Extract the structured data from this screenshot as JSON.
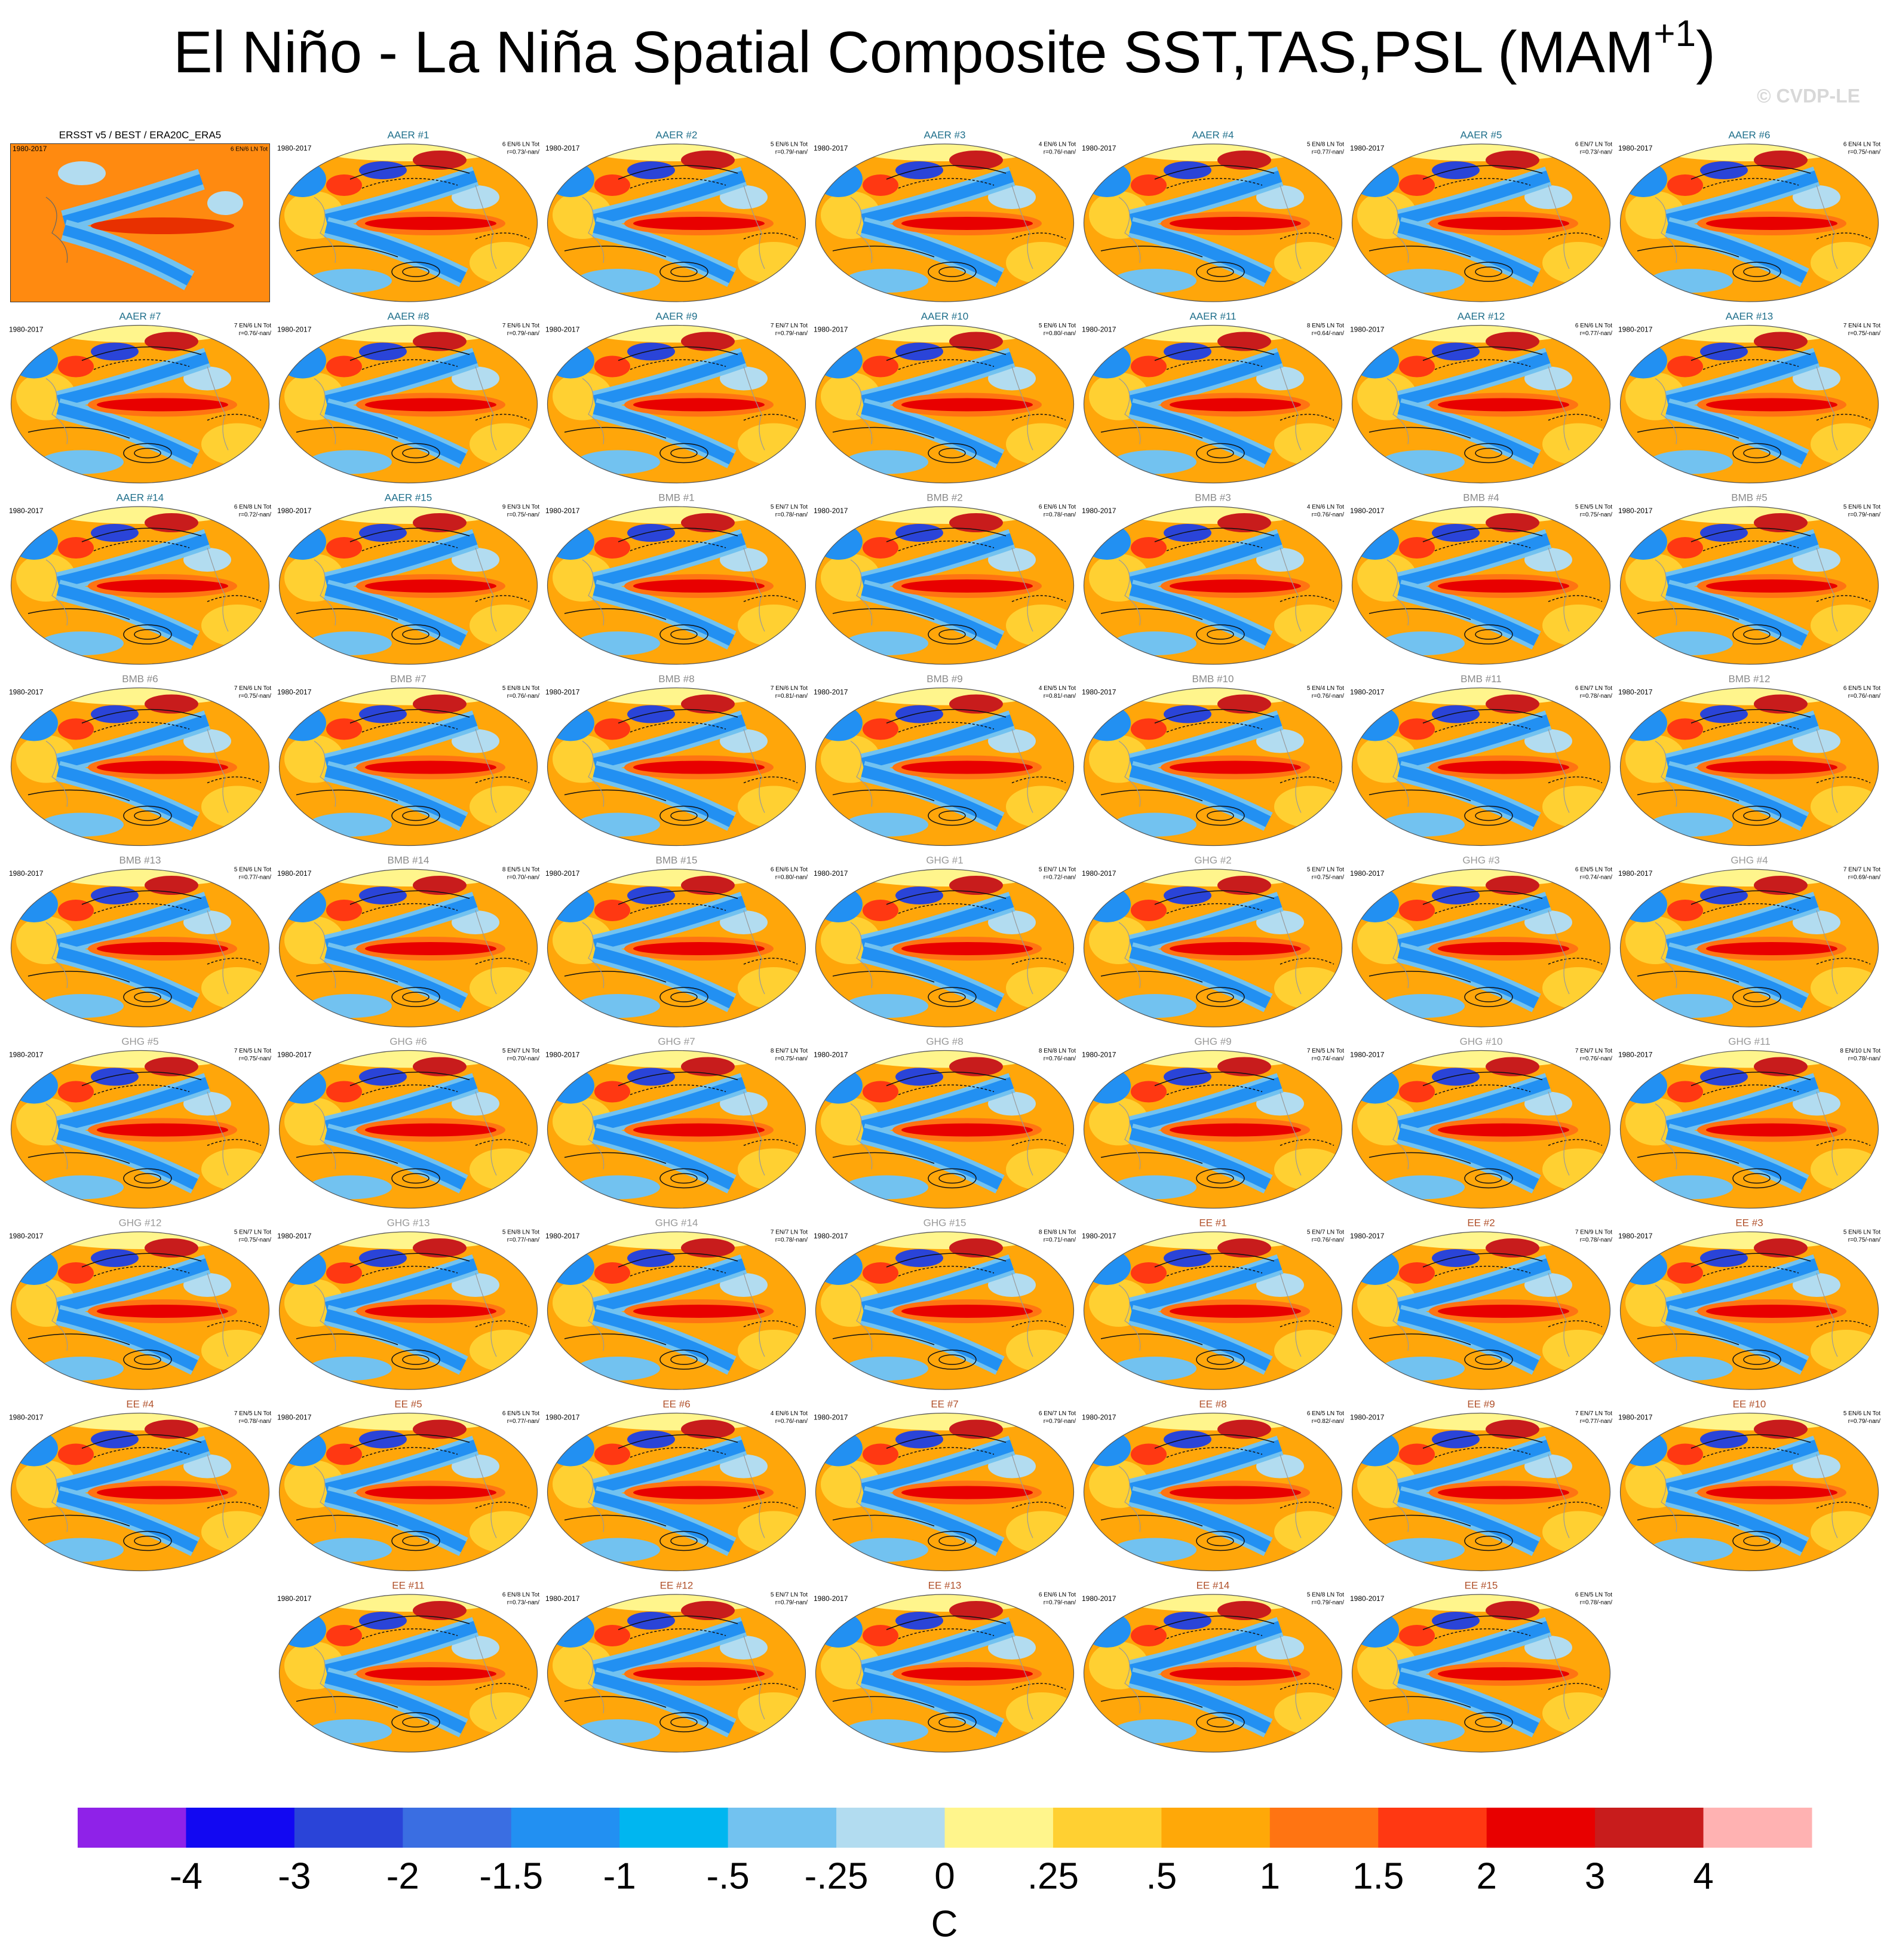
{
  "title": "El Niño - La Niña Spatial Composite SST,TAS,PSL (MAM",
  "title_superscript": "+1",
  "title_end": ")",
  "watermark": "© CVDP-LE",
  "panels": [
    {
      "title": "ERSST v5 / BEST / ERA20C_ERA5",
      "period": "1980-2017",
      "counts": "6 EN/6 LN Tot",
      "color": "#000000"
    },
    {
      "title": "AAER #1",
      "period": "1980-2017",
      "counts": "6 EN/6 LN Tot",
      "stats": "r=0.73/-nan/",
      "color": "#1f6f8b"
    },
    {
      "title": "AAER #2",
      "period": "1980-2017",
      "counts": "5 EN/6 LN Tot",
      "stats": "r=0.79/-nan/",
      "color": "#1f6f8b"
    },
    {
      "title": "AAER #3",
      "period": "1980-2017",
      "counts": "4 EN/6 LN Tot",
      "stats": "r=0.76/-nan/",
      "color": "#1f6f8b"
    },
    {
      "title": "AAER #4",
      "period": "1980-2017",
      "counts": "5 EN/8 LN Tot",
      "stats": "r=0.77/-nan/",
      "color": "#1f6f8b"
    },
    {
      "title": "AAER #5",
      "period": "1980-2017",
      "counts": "6 EN/7 LN Tot",
      "stats": "r=0.73/-nan/",
      "color": "#1f6f8b"
    },
    {
      "title": "AAER #6",
      "period": "1980-2017",
      "counts": "6 EN/4 LN Tot",
      "stats": "r=0.75/-nan/",
      "color": "#1f6f8b"
    },
    {
      "title": "AAER #7",
      "period": "1980-2017",
      "counts": "7 EN/6 LN Tot",
      "stats": "r=0.76/-nan/",
      "color": "#1f6f8b"
    },
    {
      "title": "AAER #8",
      "period": "1980-2017",
      "counts": "7 EN/6 LN Tot",
      "stats": "r=0.79/-nan/",
      "color": "#1f6f8b"
    },
    {
      "title": "AAER #9",
      "period": "1980-2017",
      "counts": "7 EN/7 LN Tot",
      "stats": "r=0.79/-nan/",
      "color": "#1f6f8b"
    },
    {
      "title": "AAER #10",
      "period": "1980-2017",
      "counts": "5 EN/6 LN Tot",
      "stats": "r=0.80/-nan/",
      "color": "#1f6f8b"
    },
    {
      "title": "AAER #11",
      "period": "1980-2017",
      "counts": "8 EN/5 LN Tot",
      "stats": "r=0.64/-nan/",
      "color": "#1f6f8b"
    },
    {
      "title": "AAER #12",
      "period": "1980-2017",
      "counts": "6 EN/6 LN Tot",
      "stats": "r=0.77/-nan/",
      "color": "#1f6f8b"
    },
    {
      "title": "AAER #13",
      "period": "1980-2017",
      "counts": "7 EN/4 LN Tot",
      "stats": "r=0.75/-nan/",
      "color": "#1f6f8b"
    },
    {
      "title": "AAER #14",
      "period": "1980-2017",
      "counts": "6 EN/8 LN Tot",
      "stats": "r=0.72/-nan/",
      "color": "#1f6f8b"
    },
    {
      "title": "AAER #15",
      "period": "1980-2017",
      "counts": "9 EN/3 LN Tot",
      "stats": "r=0.75/-nan/",
      "color": "#1f6f8b"
    },
    {
      "title": "BMB #1",
      "period": "1980-2017",
      "counts": "5 EN/7 LN Tot",
      "stats": "r=0.78/-nan/",
      "color": "#8a8a8a"
    },
    {
      "title": "BMB #2",
      "period": "1980-2017",
      "counts": "6 EN/6 LN Tot",
      "stats": "r=0.78/-nan/",
      "color": "#8a8a8a"
    },
    {
      "title": "BMB #3",
      "period": "1980-2017",
      "counts": "4 EN/6 LN Tot",
      "stats": "r=0.76/-nan/",
      "color": "#8a8a8a"
    },
    {
      "title": "BMB #4",
      "period": "1980-2017",
      "counts": "5 EN/5 LN Tot",
      "stats": "r=0.75/-nan/",
      "color": "#8a8a8a"
    },
    {
      "title": "BMB #5",
      "period": "1980-2017",
      "counts": "5 EN/6 LN Tot",
      "stats": "r=0.79/-nan/",
      "color": "#8a8a8a"
    },
    {
      "title": "BMB #6",
      "period": "1980-2017",
      "counts": "7 EN/6 LN Tot",
      "stats": "r=0.75/-nan/",
      "color": "#8a8a8a"
    },
    {
      "title": "BMB #7",
      "period": "1980-2017",
      "counts": "5 EN/8 LN Tot",
      "stats": "r=0.76/-nan/",
      "color": "#8a8a8a"
    },
    {
      "title": "BMB #8",
      "period": "1980-2017",
      "counts": "7 EN/6 LN Tot",
      "stats": "r=0.81/-nan/",
      "color": "#8a8a8a"
    },
    {
      "title": "BMB #9",
      "period": "1980-2017",
      "counts": "4 EN/5 LN Tot",
      "stats": "r=0.81/-nan/",
      "color": "#8a8a8a"
    },
    {
      "title": "BMB #10",
      "period": "1980-2017",
      "counts": "5 EN/4 LN Tot",
      "stats": "r=0.76/-nan/",
      "color": "#8a8a8a"
    },
    {
      "title": "BMB #11",
      "period": "1980-2017",
      "counts": "6 EN/7 LN Tot",
      "stats": "r=0.78/-nan/",
      "color": "#8a8a8a"
    },
    {
      "title": "BMB #12",
      "period": "1980-2017",
      "counts": "6 EN/5 LN Tot",
      "stats": "r=0.76/-nan/",
      "color": "#8a8a8a"
    },
    {
      "title": "BMB #13",
      "period": "1980-2017",
      "counts": "5 EN/6 LN Tot",
      "stats": "r=0.77/-nan/",
      "color": "#8a8a8a"
    },
    {
      "title": "BMB #14",
      "period": "1980-2017",
      "counts": "8 EN/5 LN Tot",
      "stats": "r=0.70/-nan/",
      "color": "#8a8a8a"
    },
    {
      "title": "BMB #15",
      "period": "1980-2017",
      "counts": "6 EN/6 LN Tot",
      "stats": "r=0.80/-nan/",
      "color": "#8a8a8a"
    },
    {
      "title": "GHG #1",
      "period": "1980-2017",
      "counts": "5 EN/7 LN Tot",
      "stats": "r=0.72/-nan/",
      "color": "#999999"
    },
    {
      "title": "GHG #2",
      "period": "1980-2017",
      "counts": "5 EN/7 LN Tot",
      "stats": "r=0.75/-nan/",
      "color": "#999999"
    },
    {
      "title": "GHG #3",
      "period": "1980-2017",
      "counts": "6 EN/5 LN Tot",
      "stats": "r=0.74/-nan/",
      "color": "#999999"
    },
    {
      "title": "GHG #4",
      "period": "1980-2017",
      "counts": "7 EN/7 LN Tot",
      "stats": "r=0.69/-nan/",
      "color": "#999999"
    },
    {
      "title": "GHG #5",
      "period": "1980-2017",
      "counts": "7 EN/5 LN Tot",
      "stats": "r=0.75/-nan/",
      "color": "#999999"
    },
    {
      "title": "GHG #6",
      "period": "1980-2017",
      "counts": "5 EN/7 LN Tot",
      "stats": "r=0.70/-nan/",
      "color": "#999999"
    },
    {
      "title": "GHG #7",
      "period": "1980-2017",
      "counts": "8 EN/7 LN Tot",
      "stats": "r=0.75/-nan/",
      "color": "#999999"
    },
    {
      "title": "GHG #8",
      "period": "1980-2017",
      "counts": "8 EN/8 LN Tot",
      "stats": "r=0.76/-nan/",
      "color": "#999999"
    },
    {
      "title": "GHG #9",
      "period": "1980-2017",
      "counts": "7 EN/5 LN Tot",
      "stats": "r=0.74/-nan/",
      "color": "#999999"
    },
    {
      "title": "GHG #10",
      "period": "1980-2017",
      "counts": "7 EN/7 LN Tot",
      "stats": "r=0.76/-nan/",
      "color": "#999999"
    },
    {
      "title": "GHG #11",
      "period": "1980-2017",
      "counts": "8 EN/10 LN Tot",
      "stats": "r=0.78/-nan/",
      "color": "#999999"
    },
    {
      "title": "GHG #12",
      "period": "1980-2017",
      "counts": "5 EN/7 LN Tot",
      "stats": "r=0.75/-nan/",
      "color": "#999999"
    },
    {
      "title": "GHG #13",
      "period": "1980-2017",
      "counts": "5 EN/8 LN Tot",
      "stats": "r=0.77/-nan/",
      "color": "#999999"
    },
    {
      "title": "GHG #14",
      "period": "1980-2017",
      "counts": "7 EN/7 LN Tot",
      "stats": "r=0.78/-nan/",
      "color": "#999999"
    },
    {
      "title": "GHG #15",
      "period": "1980-2017",
      "counts": "8 EN/8 LN Tot",
      "stats": "r=0.71/-nan/",
      "color": "#999999"
    },
    {
      "title": "EE #1",
      "period": "1980-2017",
      "counts": "5 EN/7 LN Tot",
      "stats": "r=0.76/-nan/",
      "color": "#b0502a"
    },
    {
      "title": "EE #2",
      "period": "1980-2017",
      "counts": "7 EN/9 LN Tot",
      "stats": "r=0.78/-nan/",
      "color": "#b0502a"
    },
    {
      "title": "EE #3",
      "period": "1980-2017",
      "counts": "5 EN/6 LN Tot",
      "stats": "r=0.75/-nan/",
      "color": "#b0502a"
    },
    {
      "title": "EE #4",
      "period": "1980-2017",
      "counts": "7 EN/5 LN Tot",
      "stats": "r=0.78/-nan/",
      "color": "#b0502a"
    },
    {
      "title": "EE #5",
      "period": "1980-2017",
      "counts": "6 EN/5 LN Tot",
      "stats": "r=0.77/-nan/",
      "color": "#b0502a"
    },
    {
      "title": "EE #6",
      "period": "1980-2017",
      "counts": "4 EN/6 LN Tot",
      "stats": "r=0.76/-nan/",
      "color": "#b0502a"
    },
    {
      "title": "EE #7",
      "period": "1980-2017",
      "counts": "6 EN/7 LN Tot",
      "stats": "r=0.79/-nan/",
      "color": "#b0502a"
    },
    {
      "title": "EE #8",
      "period": "1980-2017",
      "counts": "6 EN/5 LN Tot",
      "stats": "r=0.82/-nan/",
      "color": "#b0502a"
    },
    {
      "title": "EE #9",
      "period": "1980-2017",
      "counts": "7 EN/7 LN Tot",
      "stats": "r=0.77/-nan/",
      "color": "#b0502a"
    },
    {
      "title": "EE #10",
      "period": "1980-2017",
      "counts": "5 EN/6 LN Tot",
      "stats": "r=0.79/-nan/",
      "color": "#b0502a"
    },
    {
      "title": "EE #11",
      "period": "1980-2017",
      "counts": "6 EN/8 LN Tot",
      "stats": "r=0.73/-nan/",
      "color": "#b0502a"
    },
    {
      "title": "EE #12",
      "period": "1980-2017",
      "counts": "5 EN/7 LN Tot",
      "stats": "r=0.79/-nan/",
      "color": "#b0502a"
    },
    {
      "title": "EE #13",
      "period": "1980-2017",
      "counts": "6 EN/6 LN Tot",
      "stats": "r=0.79/-nan/",
      "color": "#b0502a"
    },
    {
      "title": "EE #14",
      "period": "1980-2017",
      "counts": "5 EN/8 LN Tot",
      "stats": "r=0.79/-nan/",
      "color": "#b0502a"
    },
    {
      "title": "EE #15",
      "period": "1980-2017",
      "counts": "6 EN/5 LN Tot",
      "stats": "r=0.78/-nan/",
      "color": "#b0502a"
    }
  ],
  "colorbar": {
    "colors": [
      "#8f22e8",
      "#1208f2",
      "#2a44d8",
      "#3a6ee2",
      "#2290f2",
      "#00b6f0",
      "#72c2f0",
      "#b2dcf0",
      "#fff58c",
      "#ffd032",
      "#ffa808",
      "#ff7412",
      "#ff3812",
      "#e80000",
      "#c81c1c",
      "#ffb2b2"
    ],
    "ticks": [
      -4,
      -3,
      -2,
      -1.5,
      -1,
      {
        "value": -0.5,
        "label": "-.5"
      },
      {
        "value": -0.25,
        "label": "-.25"
      },
      0,
      {
        "value": 0.25,
        "label": ".25"
      },
      {
        "value": 0.5,
        "label": ".5"
      },
      1,
      1.5,
      2,
      3,
      4
    ],
    "unit": "C"
  }
}
